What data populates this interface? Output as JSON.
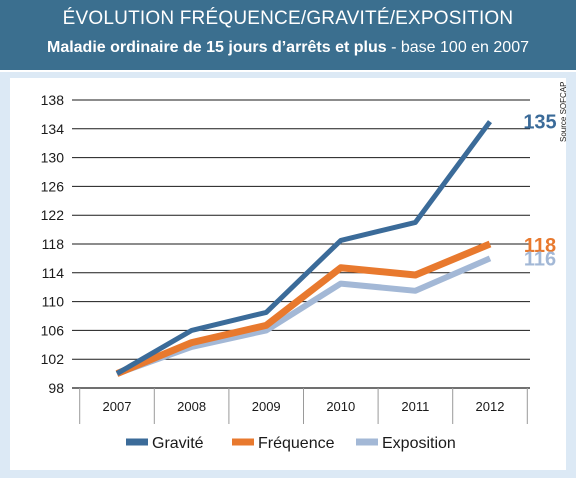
{
  "header": {
    "title": "ÉVOLUTION FRÉQUENCE/GRAVITÉ/EXPOSITION",
    "subtitle_bold": "Maladie ordinaire de 15 jours d’arrêts et plus",
    "subtitle_rest": " - base 100 en 2007"
  },
  "source_note": "Source SOFCAP",
  "colors": {
    "header_bg": "#3b6f8f",
    "frame_bg": "#dce9f5",
    "gravite": "#3b6b99",
    "frequence": "#e8792e",
    "exposition": "#a3b8d6"
  },
  "chart_data": {
    "type": "line",
    "title": "ÉVOLUTION FRÉQUENCE/GRAVITÉ/EXPOSITION",
    "subtitle": "Maladie ordinaire de 15 jours d’arrêts et plus - base 100 en 2007",
    "categories": [
      "2007",
      "2008",
      "2009",
      "2010",
      "2011",
      "2012"
    ],
    "ylim": [
      98,
      138
    ],
    "yticks": [
      98,
      102,
      106,
      110,
      114,
      118,
      122,
      126,
      130,
      134,
      138
    ],
    "grid": true,
    "legend_position": "bottom",
    "series": [
      {
        "name": "Gravité",
        "color": "#3b6b99",
        "values": [
          100,
          106,
          108.5,
          118.5,
          121,
          135
        ],
        "end_label": "135"
      },
      {
        "name": "Fréquence",
        "color": "#e8792e",
        "values": [
          100,
          104.3,
          106.7,
          114.7,
          113.7,
          118
        ],
        "end_label": "118"
      },
      {
        "name": "Exposition",
        "color": "#a3b8d6",
        "values": [
          100,
          103.7,
          106,
          112.5,
          111.5,
          116
        ],
        "end_label": "116"
      }
    ]
  }
}
